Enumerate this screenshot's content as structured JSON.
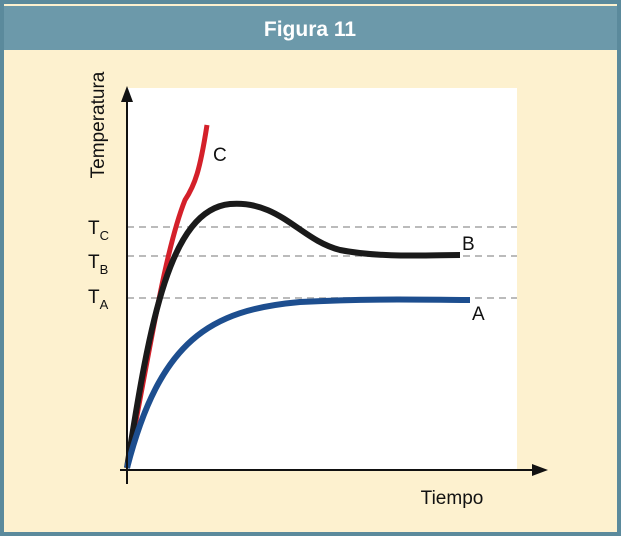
{
  "header": {
    "title": "Figura 11"
  },
  "axes": {
    "y_label": "Temperatura",
    "x_label": "Tiempo"
  },
  "levels": [
    {
      "main": "T",
      "sub": "C"
    },
    {
      "main": "T",
      "sub": "B"
    },
    {
      "main": "T",
      "sub": "A"
    }
  ],
  "curves": [
    {
      "label": "A",
      "color": "#1d4e8f"
    },
    {
      "label": "B",
      "color": "#1a1a1a"
    },
    {
      "label": "C",
      "color": "#d4202a"
    }
  ]
}
